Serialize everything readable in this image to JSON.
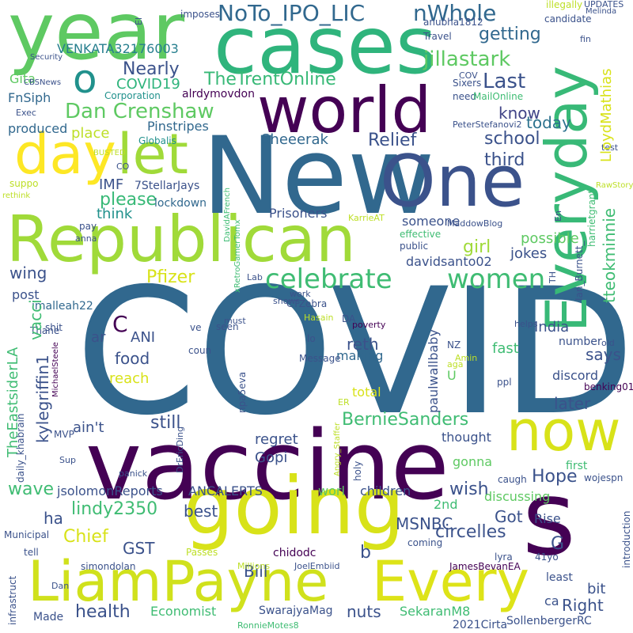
{
  "words": [
    {
      "text": "COVID",
      "color": "#31688e"
    },
    {
      "text": "vaccine",
      "color": "#440154"
    },
    {
      "text": "New",
      "color": "#31688e"
    },
    {
      "text": "One",
      "color": "#3b528b"
    },
    {
      "text": "going",
      "color": "#d8e219"
    },
    {
      "text": "Republican",
      "color": "#a0da39"
    },
    {
      "text": "LiamPayne",
      "color": "#d0e11c"
    },
    {
      "text": "Every",
      "color": "#dde318"
    },
    {
      "text": "cases",
      "color": "#2fb47c"
    },
    {
      "text": "year",
      "color": "#5ec962"
    },
    {
      "text": "world",
      "color": "#440154"
    },
    {
      "text": "now",
      "color": "#d8e219"
    },
    {
      "text": "Everyday",
      "color": "#38b977"
    },
    {
      "text": "s",
      "color": "#440154"
    },
    {
      "text": "day",
      "color": "#fde725"
    },
    {
      "text": "let",
      "color": "#a0da39"
    },
    {
      "text": "o",
      "color": "#21918c"
    },
    {
      "text": "celebrate",
      "color": "#3fbc73"
    },
    {
      "text": "women",
      "color": "#3fbc73"
    },
    {
      "text": "NoTo_IPO_LIC",
      "color": "#31688e"
    },
    {
      "text": "nWhole",
      "color": "#31688e"
    },
    {
      "text": "Dan Crenshaw",
      "color": "#5ec962"
    },
    {
      "text": "TheTrentOnline",
      "color": "#38b977"
    },
    {
      "text": "jillastark",
      "color": "#5ec962"
    },
    {
      "text": "VENKATA32176003",
      "color": "#277f8e"
    },
    {
      "text": "Nearly",
      "color": "#3b528b"
    },
    {
      "text": "Last",
      "color": "#3b528b"
    },
    {
      "text": "getting",
      "color": "#31688e"
    },
    {
      "text": "know",
      "color": "#414487"
    },
    {
      "text": "today",
      "color": "#2c728e"
    },
    {
      "text": "Relief",
      "color": "#3b528b"
    },
    {
      "text": "school",
      "color": "#3b528b"
    },
    {
      "text": "third",
      "color": "#3b528b"
    },
    {
      "text": "Sheeerak",
      "color": "#31688e"
    },
    {
      "text": "COVID19",
      "color": "#2fb47c"
    },
    {
      "text": "Gita",
      "color": "#5ec962"
    },
    {
      "text": "FnSiph",
      "color": "#31688e"
    },
    {
      "text": "produced",
      "color": "#31688e"
    },
    {
      "text": "place",
      "color": "#bddf26"
    },
    {
      "text": "Pinstripes",
      "color": "#31688e"
    },
    {
      "text": "alrdymovdon",
      "color": "#440154"
    },
    {
      "text": "Corporation",
      "color": "#21918c"
    },
    {
      "text": "Globalis",
      "color": "#21918c"
    },
    {
      "text": "please",
      "color": "#38b977"
    },
    {
      "text": "IMF",
      "color": "#3b528b"
    },
    {
      "text": "7StellarJays",
      "color": "#3b528b"
    },
    {
      "text": "think",
      "color": "#21918c"
    },
    {
      "text": "lockdown",
      "color": "#31688e"
    },
    {
      "text": "Prisoners",
      "color": "#3b528b"
    },
    {
      "text": "girl",
      "color": "#a0da39"
    },
    {
      "text": "someone",
      "color": "#3b528b"
    },
    {
      "text": "possible",
      "color": "#5ec962"
    },
    {
      "text": "jokes",
      "color": "#3b528b"
    },
    {
      "text": "davidsanto02",
      "color": "#3b528b"
    },
    {
      "text": "Pfizer",
      "color": "#d8e219"
    },
    {
      "text": "wing",
      "color": "#3b528b"
    },
    {
      "text": "post",
      "color": "#3b528b"
    },
    {
      "text": "imalleah22",
      "color": "#31688e"
    },
    {
      "text": "C",
      "color": "#440154"
    },
    {
      "text": "ANI",
      "color": "#3b528b"
    },
    {
      "text": "ar",
      "color": "#3b528b"
    },
    {
      "text": "food",
      "color": "#3b528b"
    },
    {
      "text": "reach",
      "color": "#d8e219"
    },
    {
      "text": "reth",
      "color": "#3b528b"
    },
    {
      "text": "making",
      "color": "#31688e"
    },
    {
      "text": "India",
      "color": "#3b528b"
    },
    {
      "text": "says",
      "color": "#3b528b"
    },
    {
      "text": "fast",
      "color": "#3fbc73"
    },
    {
      "text": "discord",
      "color": "#3b528b"
    },
    {
      "text": "number",
      "color": "#3b528b"
    },
    {
      "text": "total",
      "color": "#d8e219"
    },
    {
      "text": "U",
      "color": "#5ec962"
    },
    {
      "text": "later",
      "color": "#3b528b"
    },
    {
      "text": "BernieSanders",
      "color": "#3fbc73"
    },
    {
      "text": "still",
      "color": "#3b528b"
    },
    {
      "text": "regret",
      "color": "#3b528b"
    },
    {
      "text": "ain't",
      "color": "#3b528b"
    },
    {
      "text": "thought",
      "color": "#3b528b"
    },
    {
      "text": "gonna",
      "color": "#5ec962"
    },
    {
      "text": "wave",
      "color": "#3fbc73"
    },
    {
      "text": "wish",
      "color": "#3b528b"
    },
    {
      "text": "Hope",
      "color": "#3b528b"
    },
    {
      "text": "discussing",
      "color": "#5ec962"
    },
    {
      "text": "Gopi",
      "color": "#3b528b"
    },
    {
      "text": "jsolomonReports",
      "color": "#3b528b"
    },
    {
      "text": "ANCALERTS",
      "color": "#3b528b"
    },
    {
      "text": "worl",
      "color": "#5ec962"
    },
    {
      "text": "children",
      "color": "#3b528b"
    },
    {
      "text": "lindy2350",
      "color": "#3fbc73"
    },
    {
      "text": "ha",
      "color": "#3b528b"
    },
    {
      "text": "Chief",
      "color": "#d8e219"
    },
    {
      "text": "best",
      "color": "#3b528b"
    },
    {
      "text": "GST",
      "color": "#3b528b"
    },
    {
      "text": "Bill",
      "color": "#3b528b"
    },
    {
      "text": "MSNBC",
      "color": "#3b528b"
    },
    {
      "text": "Got",
      "color": "#3b528b"
    },
    {
      "text": "Rise",
      "color": "#3b528b"
    },
    {
      "text": "2nd",
      "color": "#3fbc73"
    },
    {
      "text": "circelles",
      "color": "#3b528b"
    },
    {
      "text": "G",
      "color": "#3b528b"
    },
    {
      "text": "b",
      "color": "#3b528b"
    },
    {
      "text": "bit",
      "color": "#3b528b"
    },
    {
      "text": "Right",
      "color": "#3b528b"
    },
    {
      "text": "ca",
      "color": "#3b528b"
    },
    {
      "text": "health",
      "color": "#3b528b"
    },
    {
      "text": "Economist",
      "color": "#3fbc73"
    },
    {
      "text": "nuts",
      "color": "#3b528b"
    },
    {
      "text": "SekaranM8",
      "color": "#3fbc73"
    },
    {
      "text": "SwarajyaMag",
      "color": "#3b528b"
    },
    {
      "text": "Made",
      "color": "#3b528b"
    },
    {
      "text": "chidodc",
      "color": "#440154"
    },
    {
      "text": "tell",
      "color": "#3b528b"
    },
    {
      "text": "Municipal",
      "color": "#3b528b"
    },
    {
      "text": "simondolan",
      "color": "#3b528b"
    },
    {
      "text": "Dan",
      "color": "#3b528b"
    },
    {
      "text": "Passes",
      "color": "#bddf26"
    },
    {
      "text": "Millions",
      "color": "#bddf26"
    },
    {
      "text": "JoelEmbiid",
      "color": "#3b528b"
    },
    {
      "text": "lyra",
      "color": "#3b528b"
    },
    {
      "text": "41yo",
      "color": "#3b528b"
    },
    {
      "text": "JamesBevanEA",
      "color": "#440154"
    },
    {
      "text": "coming",
      "color": "#3b528b"
    },
    {
      "text": "least",
      "color": "#3b528b"
    },
    {
      "text": "SollenbergerRC",
      "color": "#3b528b"
    },
    {
      "text": "2021Cirta",
      "color": "#3b528b"
    },
    {
      "text": "RonnieMotes8",
      "color": "#3fbc73"
    },
    {
      "text": "first",
      "color": "#3fbc73"
    },
    {
      "text": "caugh",
      "color": "#3b528b"
    },
    {
      "text": "wojespn",
      "color": "#3b528b"
    },
    {
      "text": "panick",
      "color": "#3b528b"
    },
    {
      "text": "MVP",
      "color": "#3b528b"
    },
    {
      "text": "Sup",
      "color": "#3b528b"
    },
    {
      "text": "shit",
      "color": "#3b528b"
    },
    {
      "text": "Thane",
      "color": "#3b528b"
    },
    {
      "text": "shows",
      "color": "#3b528b"
    },
    {
      "text": "work",
      "color": "#3b528b"
    },
    {
      "text": "CTZebra",
      "color": "#3b528b"
    },
    {
      "text": "Lab",
      "color": "#3b528b"
    },
    {
      "text": "must",
      "color": "#3b528b"
    },
    {
      "text": "seen",
      "color": "#3b528b"
    },
    {
      "text": "ve",
      "color": "#3b528b"
    },
    {
      "text": "coun",
      "color": "#3b528b"
    },
    {
      "text": "Hasain",
      "color": "#bddf26"
    },
    {
      "text": "poverty",
      "color": "#440154"
    },
    {
      "text": "DA",
      "color": "#3b528b"
    },
    {
      "text": "lo",
      "color": "#3b528b"
    },
    {
      "text": "Message",
      "color": "#3b528b"
    },
    {
      "text": "NZ",
      "color": "#3b528b"
    },
    {
      "text": "Amin",
      "color": "#bddf26"
    },
    {
      "text": "aga",
      "color": "#bddf26"
    },
    {
      "text": "ER",
      "color": "#bddf26"
    },
    {
      "text": "ppl",
      "color": "#3b528b"
    },
    {
      "text": "helps",
      "color": "#3b528b"
    },
    {
      "text": "old",
      "color": "#3b528b"
    },
    {
      "text": "benking01",
      "color": "#440154"
    },
    {
      "text": "pay",
      "color": "#3b528b"
    },
    {
      "text": "anna",
      "color": "#3b528b"
    },
    {
      "text": "effective",
      "color": "#3fbc73"
    },
    {
      "text": "public",
      "color": "#3b528b"
    },
    {
      "text": "MaddowBlog",
      "color": "#3b528b"
    },
    {
      "text": "KarrieAT",
      "color": "#bddf26"
    },
    {
      "text": "suppo",
      "color": "#bddf26"
    },
    {
      "text": "rethink",
      "color": "#bddf26"
    },
    {
      "text": "CO",
      "color": "#3b528b"
    },
    {
      "text": "BUSTED",
      "color": "#bddf26"
    },
    {
      "text": "test",
      "color": "#3b528b"
    },
    {
      "text": "RawStory",
      "color": "#bddf26"
    },
    {
      "text": "En",
      "color": "#3b528b"
    },
    {
      "text": "Exec",
      "color": "#3b528b"
    },
    {
      "text": "CBSNews",
      "color": "#3b528b"
    },
    {
      "text": "Security",
      "color": "#3b528b"
    },
    {
      "text": "imposes",
      "color": "#3b528b"
    },
    {
      "text": "illegally",
      "color": "#bddf26"
    },
    {
      "text": "candidate",
      "color": "#3b528b"
    },
    {
      "text": "UPDATES",
      "color": "#3b528b"
    },
    {
      "text": "Melinda",
      "color": "#3b528b"
    },
    {
      "text": "fin",
      "color": "#3b528b"
    },
    {
      "text": "anubha1812",
      "color": "#3b528b"
    },
    {
      "text": "Travel",
      "color": "#3b528b"
    },
    {
      "text": "Sixers",
      "color": "#3b528b"
    },
    {
      "text": "COV",
      "color": "#3b528b"
    },
    {
      "text": "need",
      "color": "#3b528b"
    },
    {
      "text": "MailOnline",
      "color": "#3fbc73"
    },
    {
      "text": "PeterStefanovi2",
      "color": "#3b528b"
    },
    {
      "text": "El",
      "color": "#3b528b"
    },
    {
      "text": "Ian_Burnett_",
      "color": "#3b528b"
    },
    {
      "text": "TH",
      "color": "#3b528b"
    },
    {
      "text": "harrietgrant",
      "color": "#3fbc73"
    },
    {
      "text": "tteokminnie",
      "color": "#3fbc73"
    },
    {
      "text": "LloydMathias",
      "color": "#d8e219"
    },
    {
      "text": "vacci",
      "color": "#3fbc73"
    },
    {
      "text": "kylegriffin1",
      "color": "#3b528b"
    },
    {
      "text": "TheEastsiderLA",
      "color": "#3fbc73"
    },
    {
      "text": "daily_khabrain",
      "color": "#3b528b"
    },
    {
      "text": "MichaelSteele",
      "color": "#440154"
    },
    {
      "text": "DrEricDing",
      "color": "#3b528b"
    },
    {
      "text": "Angry_Staffer",
      "color": "#bddf26"
    },
    {
      "text": "holy",
      "color": "#3b528b"
    },
    {
      "text": "npa5eva",
      "color": "#3b528b"
    },
    {
      "text": "paulwallbaby",
      "color": "#3b528b"
    },
    {
      "text": "xRetroGamerTomx",
      "color": "#3fbc73"
    },
    {
      "text": "DavidAFrench",
      "color": "#3fbc73"
    },
    {
      "text": "infrastruct",
      "color": "#3b528b"
    },
    {
      "text": "introduction",
      "color": "#3b528b"
    }
  ]
}
